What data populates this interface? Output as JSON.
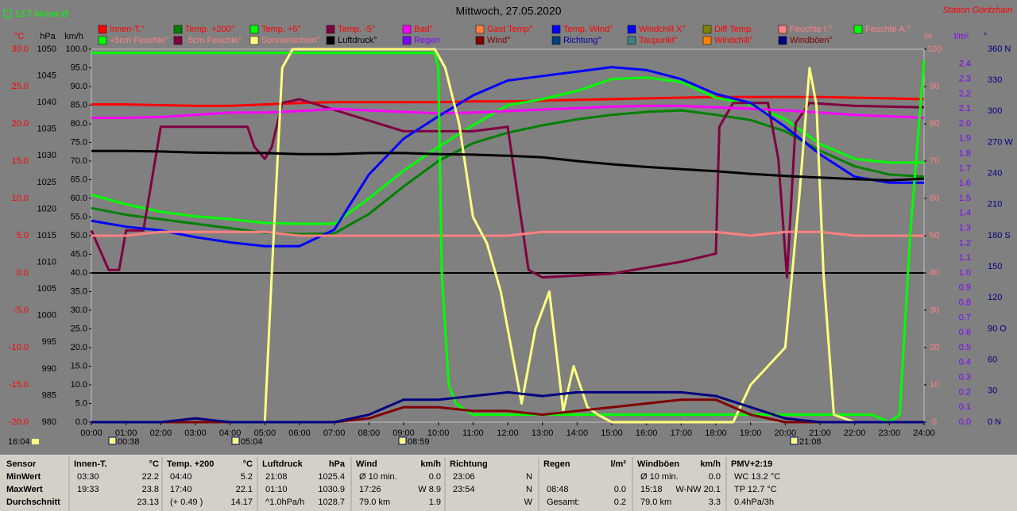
{
  "header": {
    "month_avg": "13.7 Monat-Ø",
    "title": "Mittwoch, 27.05.2020",
    "station": "Station Göritzhain"
  },
  "chart_data": {
    "type": "line",
    "x": [
      0,
      1,
      2,
      3,
      4,
      5,
      6,
      7,
      8,
      9,
      10,
      11,
      12,
      13,
      14,
      15,
      16,
      17,
      18,
      19,
      20,
      21,
      22,
      23,
      24
    ],
    "xlim": [
      0,
      24
    ],
    "xticks": [
      {
        "value": 0,
        "label": "00:00"
      },
      {
        "value": 1,
        "label": "01:00"
      },
      {
        "value": 2,
        "label": "02:00"
      },
      {
        "value": 3,
        "label": "03:00"
      },
      {
        "value": 4,
        "label": "04:00"
      },
      {
        "value": 5,
        "label": "05:00"
      },
      {
        "value": 6,
        "label": "06:00"
      },
      {
        "value": 7,
        "label": "07:00"
      },
      {
        "value": 8,
        "label": "08:00"
      },
      {
        "value": 9,
        "label": "09:00"
      },
      {
        "value": 10,
        "label": "10:00"
      },
      {
        "value": 11,
        "label": "11:00"
      },
      {
        "value": 12,
        "label": "12:00"
      },
      {
        "value": 13,
        "label": "13:00"
      },
      {
        "value": 14,
        "label": "14:00"
      },
      {
        "value": 15,
        "label": "15:00"
      },
      {
        "value": 16,
        "label": "16:00"
      },
      {
        "value": 17,
        "label": "17:00"
      },
      {
        "value": 18,
        "label": "18:00"
      },
      {
        "value": 19,
        "label": "19:00"
      },
      {
        "value": 20,
        "label": "20:00"
      },
      {
        "value": 21,
        "label": "21:00"
      },
      {
        "value": 22,
        "label": "22:00"
      },
      {
        "value": 23,
        "label": "23:00"
      },
      {
        "value": 24,
        "label": "24:00"
      }
    ],
    "markers": [
      "16:04",
      "00:38",
      "05:04",
      "08:59",
      "21:08"
    ],
    "axes": {
      "temp": {
        "unit": "°C",
        "color": "#ff0000",
        "lim": [
          -20,
          30
        ],
        "ticks": [
          {
            "value": 30,
            "label": "30.0"
          },
          {
            "value": 25,
            "label": "25.0"
          },
          {
            "value": 20,
            "label": "20.0"
          },
          {
            "value": 15,
            "label": "15.0"
          },
          {
            "value": 10,
            "label": "10.0"
          },
          {
            "value": 5,
            "label": "5.0"
          },
          {
            "value": 0,
            "label": "0.0"
          },
          {
            "value": -5,
            "label": "-5.0"
          },
          {
            "value": -10,
            "label": "-10.0"
          },
          {
            "value": -15,
            "label": "-15.0"
          },
          {
            "value": -20,
            "label": "-20.0"
          }
        ]
      },
      "hpa": {
        "unit": "hPa",
        "color": "#000000",
        "lim": [
          980,
          1050
        ],
        "ticks": [
          1050,
          1045,
          1040,
          1035,
          1030,
          1025,
          1020,
          1015,
          1010,
          1005,
          1000,
          995,
          990,
          985,
          980
        ]
      },
      "kmh": {
        "unit": "km/h",
        "color": "#000000",
        "lim": [
          0,
          100
        ],
        "ticks": [
          {
            "value": 100,
            "label": "100.0"
          },
          {
            "value": 95,
            "label": "95.0"
          },
          {
            "value": 90,
            "label": "90.0"
          },
          {
            "value": 85,
            "label": "85.0"
          },
          {
            "value": 80,
            "label": "80.0"
          },
          {
            "value": 75,
            "label": "75.0"
          },
          {
            "value": 70,
            "label": "70.0"
          },
          {
            "value": 65,
            "label": "65.0"
          },
          {
            "value": 60,
            "label": "60.0"
          },
          {
            "value": 55,
            "label": "55.0"
          },
          {
            "value": 50,
            "label": "50.0"
          },
          {
            "value": 45,
            "label": "45.0"
          },
          {
            "value": 40,
            "label": "40.0"
          },
          {
            "value": 35,
            "label": "35.0"
          },
          {
            "value": 30,
            "label": "30.0"
          },
          {
            "value": 25,
            "label": "25.0"
          },
          {
            "value": 20,
            "label": "20.0"
          },
          {
            "value": 15,
            "label": "15.0"
          },
          {
            "value": 10,
            "label": "10.0"
          },
          {
            "value": 5,
            "label": "5.0"
          },
          {
            "value": 0,
            "label": "0.0"
          }
        ]
      },
      "pct": {
        "unit": "%",
        "color": "#ff8080",
        "lim": [
          0,
          100
        ],
        "ticks": [
          100,
          90,
          80,
          70,
          60,
          50,
          40,
          30,
          20,
          10,
          0
        ]
      },
      "lm2": {
        "unit": "l/m²",
        "color": "#8000ff",
        "lim": [
          0,
          2.5
        ],
        "ticks": [
          2.4,
          2.3,
          2.2,
          2.1,
          {
            "value": 2,
            "label": "2.0"
          },
          1.9,
          1.8,
          1.7,
          1.6,
          1.5,
          1.4,
          1.3,
          1.2,
          1.1,
          {
            "value": 1,
            "label": "1.0"
          },
          0.9,
          0.8,
          0.7,
          0.6,
          0.5,
          0.4,
          0.3,
          0.2,
          0.1,
          {
            "value": 0,
            "label": "0.0"
          }
        ]
      },
      "dir": {
        "unit": "°",
        "color": "#000080",
        "lim": [
          0,
          360
        ],
        "ticks": [
          {
            "value": 360,
            "label": "360 N"
          },
          330,
          300,
          {
            "value": 270,
            "label": "270 W"
          },
          240,
          210,
          {
            "value": 180,
            "label": "180 S"
          },
          150,
          120,
          {
            "value": 90,
            "label": "90 O"
          },
          60,
          30,
          {
            "value": 0,
            "label": "0 N"
          }
        ]
      }
    },
    "legend": [
      {
        "name": "Innen-T.°",
        "color": "#ff0000",
        "text_color": "#ff0000",
        "axis": "temp",
        "values": [
          22.6,
          22.6,
          22.5,
          22.4,
          22.4,
          22.6,
          22.8,
          22.9,
          22.9,
          22.9,
          22.9,
          23.0,
          23.0,
          23.1,
          23.2,
          23.3,
          23.4,
          23.5,
          23.6,
          23.6,
          23.6,
          23.6,
          23.5,
          23.4,
          23.3
        ]
      },
      {
        "name": "Temp. +200°",
        "color": "#008000",
        "text_color": "#ff0000",
        "axis": "temp",
        "values": [
          8.7,
          7.8,
          7.2,
          6.6,
          6.0,
          5.4,
          5.2,
          5.3,
          7.9,
          11.6,
          15.0,
          17.4,
          18.8,
          19.8,
          20.6,
          21.2,
          21.6,
          21.8,
          21.2,
          20.5,
          19.0,
          16.4,
          14.3,
          13.2,
          12.9
        ]
      },
      {
        "name": "Temp. +5°",
        "color": "#00ff00",
        "text_color": "#ff0000",
        "axis": "temp",
        "values": [
          10.5,
          9.2,
          8.2,
          7.6,
          7.2,
          6.7,
          6.6,
          6.6,
          10.0,
          13.7,
          16.9,
          19.8,
          22.5,
          23.3,
          24.4,
          26.0,
          26.2,
          25.6,
          23.5,
          22.6,
          20.6,
          17.3,
          15.3,
          14.8,
          14.8
        ]
      },
      {
        "name": "Temp. -5°",
        "color": "#800040",
        "text_color": "#ff0000",
        "axis": "temp",
        "x": [
          0,
          0.5,
          0.8,
          1,
          1.5,
          2,
          4.5,
          4.7,
          5,
          5.2,
          5.5,
          6,
          9,
          10,
          11,
          12,
          12.3,
          12.6,
          13,
          15,
          17,
          18,
          18.1,
          18.5,
          19.5,
          19.8,
          20.05,
          20.3,
          20.7,
          22,
          24
        ],
        "values": [
          5.7,
          0.4,
          0.4,
          5.7,
          5.7,
          19.6,
          19.6,
          16.9,
          15.3,
          16.9,
          22.8,
          23.3,
          19.0,
          19.0,
          19.0,
          19.6,
          10.0,
          0.4,
          -0.6,
          -0.1,
          1.5,
          2.6,
          19.6,
          22.8,
          22.8,
          15.3,
          -0.6,
          20.1,
          22.8,
          22.4,
          22.2
        ]
      },
      {
        "name": "Bad°",
        "color": "#ff00ff",
        "text_color": "#ff0000",
        "axis": "temp",
        "values": [
          20.8,
          20.8,
          20.9,
          21.2,
          21.5,
          21.5,
          21.7,
          22.0,
          21.8,
          21.6,
          21.4,
          21.5,
          21.7,
          21.9,
          22.1,
          22.3,
          22.4,
          22.4,
          22.2,
          22.0,
          21.8,
          21.5,
          21.2,
          21.0,
          20.8
        ]
      },
      {
        "name": "Gast Temp°",
        "color": "#ff8040",
        "text_color": "#ff0000"
      },
      {
        "name": "Temp. Wind°",
        "color": "#0000ff",
        "text_color": "#ff0000",
        "axis": "temp",
        "values": [
          7.0,
          6.2,
          5.7,
          4.8,
          4.1,
          3.6,
          3.6,
          5.8,
          13.2,
          18.0,
          21.0,
          23.8,
          25.8,
          26.4,
          27.0,
          27.6,
          27.2,
          26.0,
          24.0,
          22.8,
          19.6,
          15.9,
          12.9,
          12.1,
          12.1
        ]
      },
      {
        "name": "Windchill X°",
        "color": "#0000ff",
        "text_color": "#ff0000"
      },
      {
        "name": "Diff Temp.",
        "color": "#808000",
        "text_color": "#ff0000"
      },
      {
        "name": "Feuchte I.°",
        "color": "#ff8080",
        "text_color": "#ff8080",
        "axis": "pct",
        "values": [
          50,
          50,
          51,
          51,
          51,
          51,
          50,
          50,
          50,
          50,
          50,
          50,
          50,
          51,
          51,
          51,
          51,
          51,
          51,
          50,
          51,
          51,
          50,
          50,
          50
        ]
      },
      {
        "name": "Feuchte A.°",
        "color": "#00ff00",
        "text_color": "#ff8080",
        "axis": "pct",
        "x": [
          0,
          9.9,
          10,
          10.1,
          10.3,
          10.5,
          11,
          13,
          15,
          17,
          19,
          21,
          22.5,
          23,
          23.3,
          23.6,
          24
        ],
        "values": [
          99,
          99,
          95,
          40,
          10,
          5,
          2,
          2,
          2,
          2,
          2,
          2,
          2,
          0,
          2,
          50,
          97
        ]
      },
      {
        "name": "+5cm Feuchte°",
        "color": "#00ff00",
        "text_color": "#ff8080"
      },
      {
        "name": "-5cm Feuchte°",
        "color": "#800040",
        "text_color": "#ff8080"
      },
      {
        "name": "Sonnenschein°",
        "color": "#ffff80",
        "text_color": "#ff8080",
        "axis": "pct",
        "x": [
          0,
          5,
          5.2,
          5.5,
          5.8,
          9.9,
          10.2,
          10.6,
          11,
          11.4,
          11.8,
          12.1,
          12.4,
          12.8,
          13.2,
          13.6,
          13.9,
          14.3,
          14.6,
          15,
          16,
          18.5,
          19,
          19.5,
          20,
          20.4,
          20.7,
          20.9,
          21.1,
          21.4,
          22,
          24
        ],
        "values": [
          0,
          0,
          40,
          95,
          100,
          100,
          95,
          80,
          55,
          48,
          35,
          20,
          5,
          25,
          35,
          3,
          15,
          4,
          2,
          0,
          0,
          0,
          10,
          15,
          20,
          60,
          95,
          85,
          40,
          2,
          0,
          0
        ]
      },
      {
        "name": "Luftdruck°",
        "color": "#000000",
        "text_color": "#000000",
        "axis": "hpa",
        "values": [
          1030.9,
          1030.9,
          1030.8,
          1030.6,
          1030.5,
          1030.5,
          1030.3,
          1030.3,
          1030.5,
          1030.5,
          1030.3,
          1030.2,
          1030.0,
          1029.7,
          1029.0,
          1028.4,
          1027.9,
          1027.5,
          1027.1,
          1026.6,
          1026.2,
          1025.9,
          1025.6,
          1025.4,
          1025.7
        ]
      },
      {
        "name": "Regen",
        "color": "#8000ff",
        "text_color": "#8000ff"
      },
      {
        "name": "Wind°",
        "color": "#800000",
        "text_color": "#800000",
        "axis": "kmh",
        "values": [
          0,
          0,
          0,
          0,
          0,
          0,
          0,
          0,
          1,
          4,
          4,
          3,
          3,
          2,
          3,
          4,
          5,
          6,
          6,
          2,
          0,
          0,
          0,
          0,
          0
        ]
      },
      {
        "name": "Richtung°",
        "color": "#004080",
        "text_color": "#0000a0"
      },
      {
        "name": "Taupunkt°",
        "color": "#408080",
        "text_color": "#ff0000"
      },
      {
        "name": "Windchill°",
        "color": "#ff8000",
        "text_color": "#ff0000"
      },
      {
        "name": "Windböen°",
        "color": "#000080",
        "text_color": "#800000",
        "axis": "kmh",
        "values": [
          0,
          0,
          0,
          1,
          0,
          0,
          0,
          0,
          2,
          6,
          6,
          7,
          8,
          7,
          8,
          8,
          8,
          8,
          7,
          4,
          1,
          0,
          0,
          0,
          0
        ]
      }
    ]
  },
  "table": {
    "corner": "Sensor",
    "row_labels": [
      "MinWert",
      "MaxWert",
      "Durchschnitt"
    ],
    "blocks": [
      {
        "header": [
          "Innen-T.",
          "°C"
        ],
        "rows": [
          {
            "left": "03:30",
            "right": "22.2"
          },
          {
            "left": "19:33",
            "right": "23.8"
          },
          {
            "right": "23.13"
          }
        ]
      },
      {
        "header": [
          "Temp. +200",
          "°C"
        ],
        "rows": [
          {
            "left": "04:40",
            "right": "5.2"
          },
          {
            "left": "17:40",
            "right": "22.1"
          },
          {
            "left": "(+ 0.49 )",
            "right": "14.17"
          }
        ]
      },
      {
        "header": [
          "Luftdruck",
          "hPa"
        ],
        "rows": [
          {
            "left": "21:08",
            "right": "1025.4"
          },
          {
            "left": "01:10",
            "right": "1030.9"
          },
          {
            "left": "^1.0hPa/h",
            "right": "1028.7"
          }
        ]
      },
      {
        "header": [
          "Wind",
          "km/h"
        ],
        "rows": [
          {
            "left": "Ø 10 min.",
            "right": "0.0"
          },
          {
            "left": "17:26",
            "right": "W 8.9"
          },
          {
            "left": "79.0 km",
            "right": "1.9"
          }
        ]
      },
      {
        "header": [
          "Richtung"
        ],
        "rows": [
          {
            "left": "23:06",
            "right": "N"
          },
          {
            "left": "23:54",
            "right": "N"
          },
          {
            "right": "W"
          }
        ]
      },
      {
        "header": [
          "Regen",
          "l/m²"
        ],
        "rows": [
          {},
          {
            "left": "08:48",
            "right": "0.0"
          },
          {
            "left": "Gesamt:",
            "right": "0.2"
          }
        ]
      },
      {
        "header": [
          "Windböen",
          "km/h"
        ],
        "rows": [
          {
            "left": "Ø 10 min.",
            "right": "0.0"
          },
          {
            "left": "15:18",
            "right": "W-NW 20.1"
          },
          {
            "left": "79.0 km",
            "right": "3.3"
          }
        ]
      },
      {
        "header": [
          "PMV+2:19"
        ],
        "rows": [
          {
            "left": "WC 13.2 °C"
          },
          {
            "left": "TP 12.7 °C"
          },
          {
            "left": "0.4hPa/3h"
          }
        ]
      }
    ]
  }
}
